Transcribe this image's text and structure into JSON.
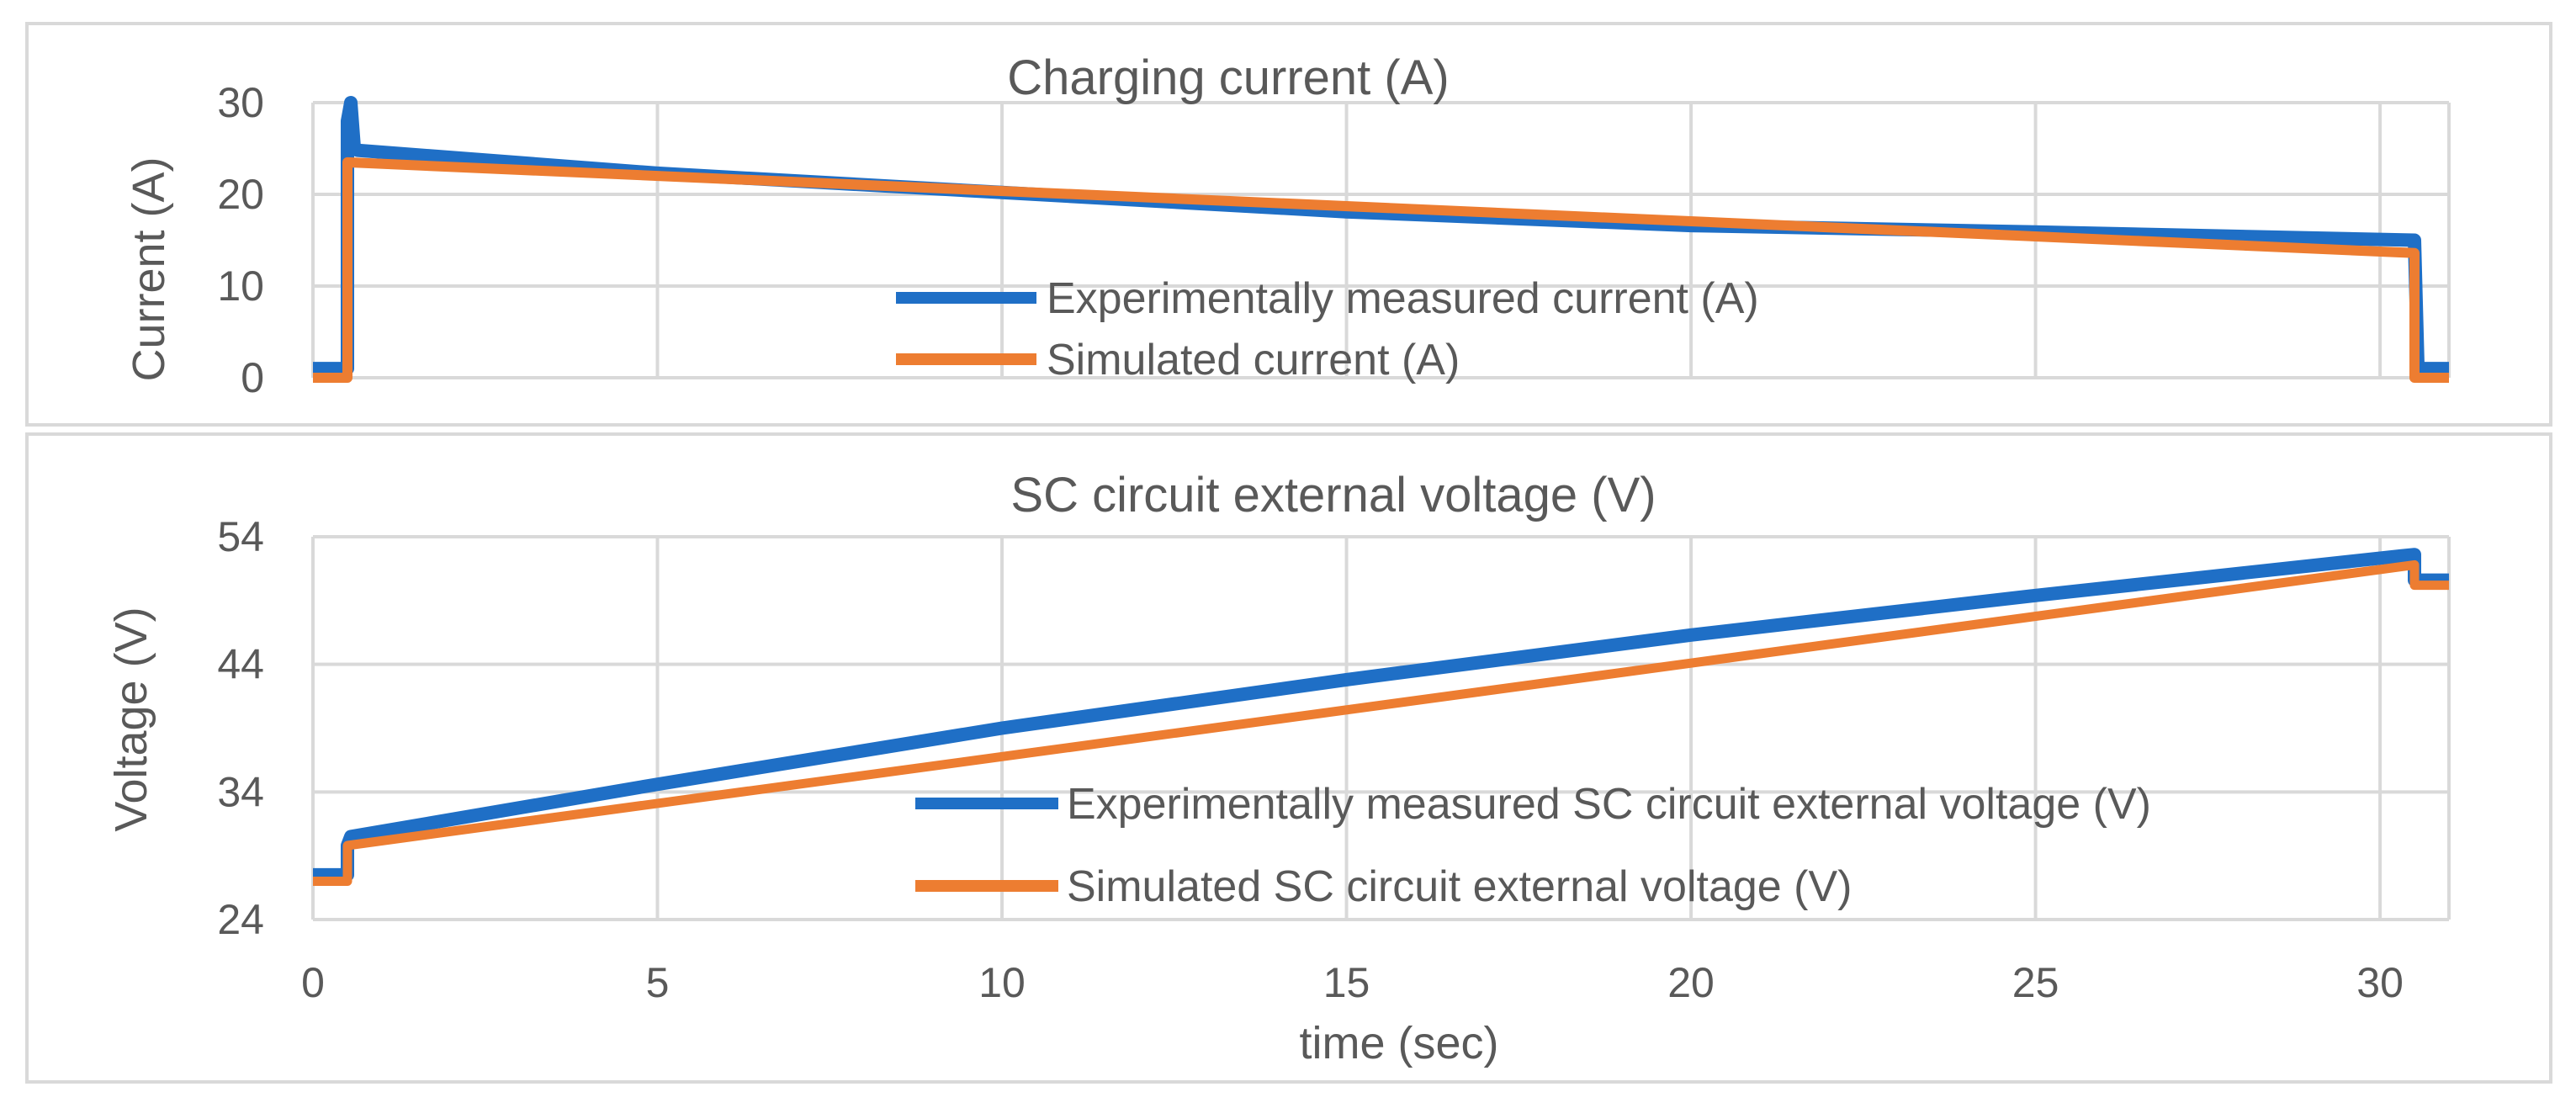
{
  "chart_data": [
    {
      "type": "line",
      "title": "Charging current (A)",
      "xlabel": "",
      "ylabel": "Current (A)",
      "xlim": [
        0,
        31
      ],
      "ylim": [
        0,
        30
      ],
      "x_ticks": [
        0,
        5,
        10,
        15,
        20,
        25,
        30
      ],
      "y_ticks": [
        0,
        10,
        20,
        30
      ],
      "y_tick_labels": [
        "0",
        "10",
        "20",
        "30"
      ],
      "grid": true,
      "legend_position": "center-inside",
      "series": [
        {
          "name": "Experimentally measured current (A)",
          "color": "#1f6fc6",
          "x": [
            0,
            0.45,
            0.5,
            0.5,
            0.55,
            0.6,
            0.65,
            5,
            10,
            15,
            20,
            25,
            30.5,
            30.5,
            30.55,
            31
          ],
          "y": [
            1,
            1,
            1,
            28,
            30,
            25,
            24.8,
            22.3,
            20.2,
            18.1,
            16.6,
            15.9,
            15.0,
            15.0,
            1,
            1
          ]
        },
        {
          "name": "Simulated current (A)",
          "color": "#ed7d31",
          "x": [
            0,
            0.5,
            0.5,
            30.5,
            30.5,
            31
          ],
          "y": [
            0,
            0,
            23.5,
            13.6,
            0,
            0
          ]
        }
      ]
    },
    {
      "type": "line",
      "title": "SC circuit external voltage (V)",
      "xlabel": "time (sec)",
      "ylabel": "Voltage (V)",
      "xlim": [
        0,
        31
      ],
      "ylim": [
        24,
        54
      ],
      "x_ticks": [
        0,
        5,
        10,
        15,
        20,
        25,
        30
      ],
      "x_tick_labels": [
        "0",
        "5",
        "10",
        "15",
        "20",
        "25",
        "30"
      ],
      "y_ticks": [
        24,
        34,
        44,
        54
      ],
      "y_tick_labels": [
        "24",
        "34",
        "44",
        "54"
      ],
      "grid": true,
      "legend_position": "center-right-inside",
      "series": [
        {
          "name": "Experimentally measured SC circuit external voltage (V)",
          "color": "#1f6fc6",
          "x": [
            0,
            0.5,
            0.5,
            0.55,
            5,
            10,
            15,
            20,
            25,
            30.3,
            30.5,
            30.5,
            31
          ],
          "y": [
            27.5,
            27.5,
            29.8,
            30.5,
            34.6,
            39.0,
            42.8,
            46.3,
            49.4,
            52.5,
            52.6,
            50.6,
            50.6
          ]
        },
        {
          "name": "Simulated SC circuit external voltage (V)",
          "color": "#ed7d31",
          "x": [
            0,
            0.5,
            0.5,
            30.5,
            30.5,
            31
          ],
          "y": [
            27.0,
            27.0,
            29.8,
            51.8,
            50.2,
            50.2
          ]
        }
      ]
    }
  ]
}
